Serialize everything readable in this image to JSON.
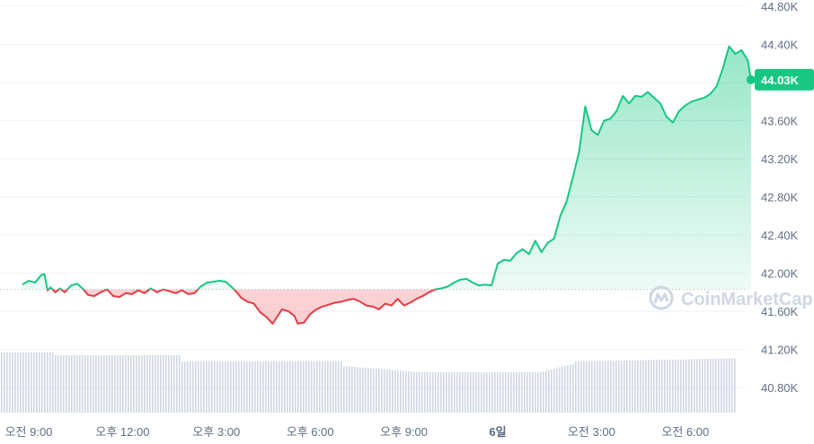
{
  "chart_data": {
    "type": "line",
    "title": "",
    "xlabel": "",
    "ylabel": "",
    "ylim": [
      40600,
      44800
    ],
    "y_ticks": [
      "44.80K",
      "44.40K",
      "44.00K",
      "43.60K",
      "43.20K",
      "42.80K",
      "42.40K",
      "42.00K",
      "41.60K",
      "41.20K",
      "40.80K"
    ],
    "y_tick_values": [
      44800,
      44400,
      44000,
      43600,
      43200,
      42800,
      42400,
      42000,
      41600,
      41200,
      40800
    ],
    "x_ticks": [
      {
        "label": "오전 9:00",
        "h": 0,
        "bold": false
      },
      {
        "label": "오후 12:00",
        "h": 3,
        "bold": false
      },
      {
        "label": "오후 3:00",
        "h": 6,
        "bold": false
      },
      {
        "label": "오후 6:00",
        "h": 9,
        "bold": false
      },
      {
        "label": "오후 9:00",
        "h": 12,
        "bold": false
      },
      {
        "label": "6일",
        "h": 15,
        "bold": true
      },
      {
        "label": "오전 3:00",
        "h": 18,
        "bold": false
      },
      {
        "label": "오전 6:00",
        "h": 21,
        "bold": false
      }
    ],
    "x_unit": "hours since 오전 9:00",
    "baseline": 41830,
    "current_price_label": "44.03K",
    "current_price": 44030,
    "colors": {
      "up": "#16c784",
      "down": "#ea3943",
      "volume": "#cfd6e4",
      "tag": "#16c784"
    },
    "series": [
      {
        "points": [
          [
            -0.2,
            41880
          ],
          [
            0.0,
            41920
          ],
          [
            0.2,
            41900
          ],
          [
            0.4,
            41980
          ],
          [
            0.5,
            41990
          ],
          [
            0.6,
            41820
          ],
          [
            0.7,
            41850
          ],
          [
            0.85,
            41800
          ],
          [
            1.0,
            41840
          ],
          [
            1.15,
            41800
          ],
          [
            1.35,
            41870
          ],
          [
            1.55,
            41890
          ],
          [
            1.75,
            41830
          ],
          [
            1.9,
            41770
          ],
          [
            2.1,
            41760
          ],
          [
            2.3,
            41800
          ],
          [
            2.5,
            41830
          ],
          [
            2.7,
            41760
          ],
          [
            2.9,
            41750
          ],
          [
            3.1,
            41790
          ],
          [
            3.3,
            41780
          ],
          [
            3.5,
            41820
          ],
          [
            3.7,
            41790
          ],
          [
            3.9,
            41840
          ],
          [
            4.1,
            41800
          ],
          [
            4.3,
            41830
          ],
          [
            4.5,
            41810
          ],
          [
            4.7,
            41790
          ],
          [
            4.9,
            41820
          ],
          [
            5.1,
            41780
          ],
          [
            5.3,
            41790
          ],
          [
            5.5,
            41860
          ],
          [
            5.7,
            41900
          ],
          [
            5.9,
            41910
          ],
          [
            6.1,
            41920
          ],
          [
            6.3,
            41910
          ],
          [
            6.4,
            41880
          ],
          [
            6.6,
            41820
          ],
          [
            6.8,
            41740
          ],
          [
            7.0,
            41700
          ],
          [
            7.2,
            41680
          ],
          [
            7.4,
            41590
          ],
          [
            7.6,
            41540
          ],
          [
            7.8,
            41470
          ],
          [
            7.9,
            41520
          ],
          [
            8.1,
            41620
          ],
          [
            8.3,
            41600
          ],
          [
            8.5,
            41550
          ],
          [
            8.6,
            41470
          ],
          [
            8.8,
            41480
          ],
          [
            9.0,
            41570
          ],
          [
            9.2,
            41620
          ],
          [
            9.4,
            41650
          ],
          [
            9.6,
            41670
          ],
          [
            9.8,
            41690
          ],
          [
            10.0,
            41700
          ],
          [
            10.2,
            41720
          ],
          [
            10.4,
            41730
          ],
          [
            10.6,
            41700
          ],
          [
            10.8,
            41660
          ],
          [
            11.0,
            41650
          ],
          [
            11.2,
            41620
          ],
          [
            11.4,
            41680
          ],
          [
            11.6,
            41660
          ],
          [
            11.8,
            41730
          ],
          [
            12.0,
            41660
          ],
          [
            12.2,
            41690
          ],
          [
            12.4,
            41730
          ],
          [
            12.6,
            41760
          ],
          [
            12.8,
            41800
          ],
          [
            13.0,
            41830
          ],
          [
            13.2,
            41840
          ],
          [
            13.4,
            41860
          ],
          [
            13.6,
            41900
          ],
          [
            13.8,
            41930
          ],
          [
            14.0,
            41940
          ],
          [
            14.2,
            41900
          ],
          [
            14.4,
            41870
          ],
          [
            14.6,
            41880
          ],
          [
            14.8,
            41870
          ],
          [
            15.0,
            42100
          ],
          [
            15.2,
            42140
          ],
          [
            15.4,
            42130
          ],
          [
            15.6,
            42210
          ],
          [
            15.8,
            42250
          ],
          [
            16.0,
            42200
          ],
          [
            16.2,
            42340
          ],
          [
            16.4,
            42220
          ],
          [
            16.6,
            42320
          ],
          [
            16.8,
            42360
          ],
          [
            17.0,
            42600
          ],
          [
            17.2,
            42750
          ],
          [
            17.4,
            43000
          ],
          [
            17.6,
            43270
          ],
          [
            17.8,
            43750
          ],
          [
            18.0,
            43500
          ],
          [
            18.2,
            43450
          ],
          [
            18.4,
            43600
          ],
          [
            18.6,
            43620
          ],
          [
            18.8,
            43700
          ],
          [
            19.0,
            43860
          ],
          [
            19.2,
            43780
          ],
          [
            19.4,
            43860
          ],
          [
            19.6,
            43850
          ],
          [
            19.8,
            43900
          ],
          [
            20.0,
            43840
          ],
          [
            20.2,
            43780
          ],
          [
            20.4,
            43640
          ],
          [
            20.6,
            43580
          ],
          [
            20.8,
            43700
          ],
          [
            21.0,
            43760
          ],
          [
            21.2,
            43800
          ],
          [
            21.4,
            43820
          ],
          [
            21.6,
            43840
          ],
          [
            21.8,
            43880
          ],
          [
            22.0,
            43960
          ],
          [
            22.2,
            44150
          ],
          [
            22.4,
            44380
          ],
          [
            22.6,
            44300
          ],
          [
            22.8,
            44340
          ],
          [
            23.0,
            44230
          ],
          [
            23.1,
            44030
          ]
        ]
      }
    ]
  },
  "watermark": {
    "text": "CoinMarketCap"
  }
}
